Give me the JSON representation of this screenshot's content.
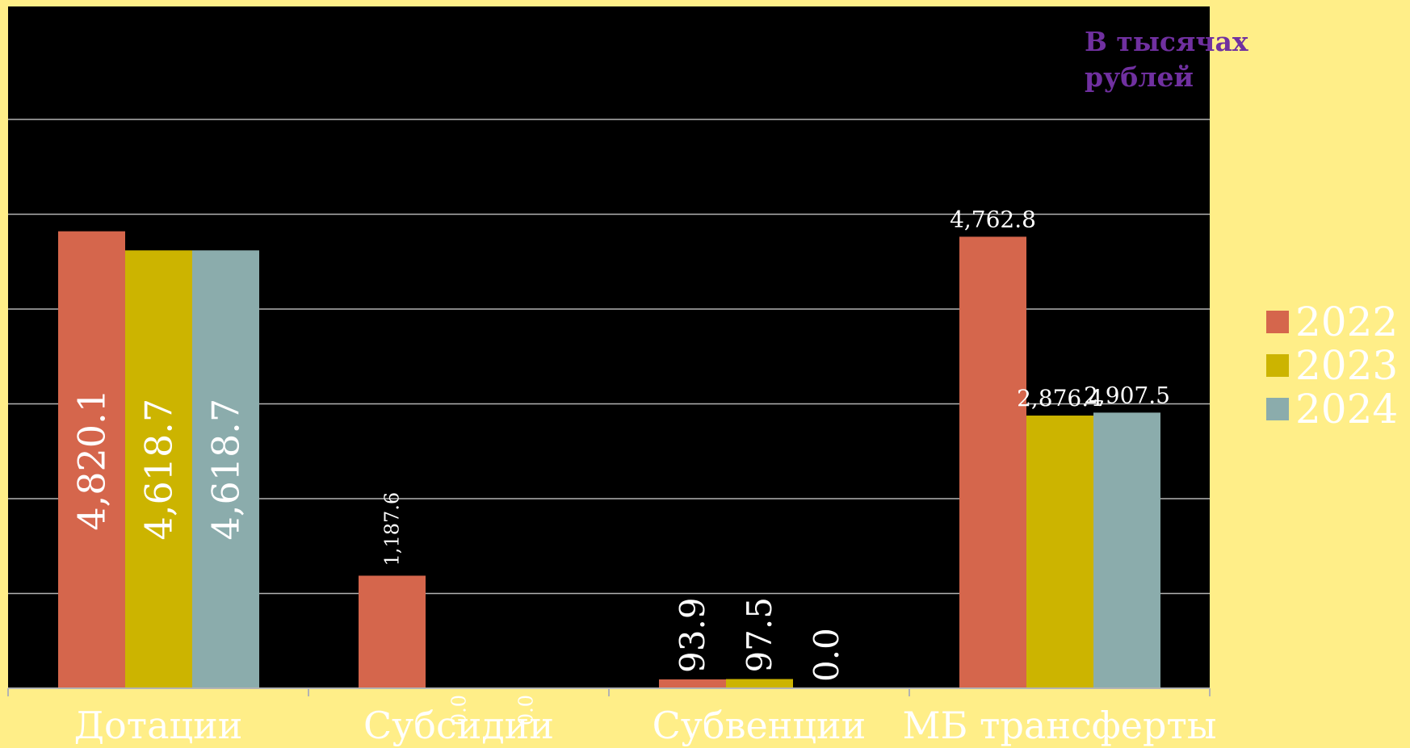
{
  "chart_data": {
    "type": "bar",
    "title": "",
    "annotation": "В тысячах рублей",
    "categories": [
      "Дотации",
      "Субсидии",
      "Субвенции",
      "МБ трансферты"
    ],
    "series": [
      {
        "name": "2022",
        "color": "#D5664C",
        "values": [
          4820.1,
          1187.6,
          93.9,
          4762.8
        ],
        "labels": [
          "4,820.1",
          "1,187.6",
          "93.9",
          "4,762.8"
        ]
      },
      {
        "name": "2023",
        "color": "#CCB400",
        "values": [
          4618.7,
          0.0,
          97.5,
          2876.4
        ],
        "labels": [
          "4,618.7",
          "0.0",
          "97.5",
          "2,876.4"
        ]
      },
      {
        "name": "2024",
        "color": "#8BACAC",
        "values": [
          4618.7,
          0.0,
          0.0,
          2907.5
        ],
        "labels": [
          "4,618.7",
          "0.0",
          "0.0",
          "2,907.5"
        ]
      }
    ],
    "ylim": [
      0,
      6000
    ],
    "grid": true,
    "legend_position": "right",
    "colors": {
      "page_background": "#FFEE88",
      "plot_background": "#000000",
      "gridline": "#B3B3B3",
      "annotation": "#7030A0",
      "text": "#FFFFFF"
    }
  }
}
